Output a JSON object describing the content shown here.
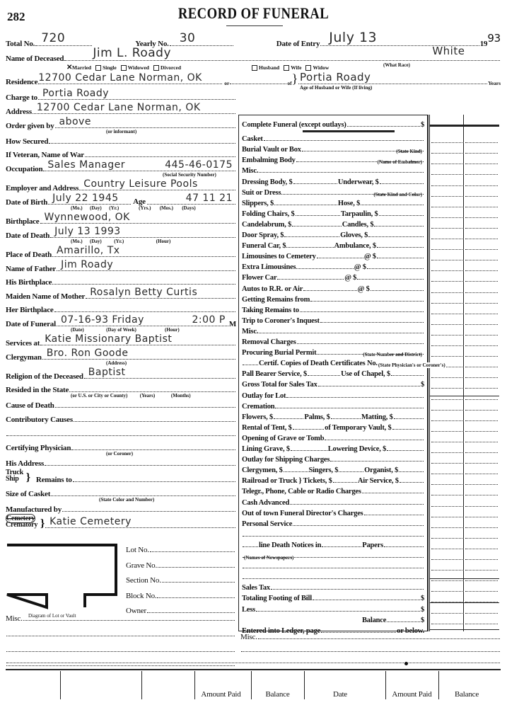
{
  "header": {
    "page_number": "282",
    "title": "RECORD OF FUNERAL"
  },
  "top": {
    "total_no_label": "Total No.",
    "total_no": "720",
    "yearly_no_label": "Yearly No.",
    "yearly_no": "30",
    "date_of_entry_label": "Date of Entry",
    "date_of_entry": "July 13",
    "year_prefix": "19",
    "year_suffix": "93"
  },
  "deceased": {
    "name_label": "Name of Deceased",
    "name": "Jim L. Roady",
    "race": "White",
    "race_note": "(What Race)",
    "marital": [
      {
        "label": "Married",
        "checked": true
      },
      {
        "label": "Single",
        "checked": false
      },
      {
        "label": "Widowed",
        "checked": false
      },
      {
        "label": "Divorced",
        "checked": false
      }
    ],
    "residence_label": "Residence",
    "residence": "12700 Cedar Lane Norman, OK",
    "spouse_options": [
      "Husband",
      "Wife",
      "Widow"
    ],
    "or_label": "or",
    "of_label": "of",
    "spouse_name": "Portia Roady",
    "age_spouse_label": "Age of Husband or Wife (If living)",
    "years_label": "Years"
  },
  "left_fields": [
    {
      "label": "Charge to",
      "value": "Portia Roady"
    },
    {
      "label": "Address",
      "value": "12700 Cedar Lane Norman, OK"
    },
    {
      "label": "Order given by",
      "value": "above",
      "note": "(or informant)"
    },
    {
      "label": "How Secured",
      "value": ""
    },
    {
      "label": "If Veteran, Name of War",
      "value": ""
    },
    {
      "label": "Occupation",
      "value": "Sales Manager",
      "value2": "445-46-0175",
      "note": "(Social Security Number)"
    },
    {
      "label": "Employer and Address",
      "value": "Country Leisure Pools"
    },
    {
      "label": "Date of Birth",
      "value": "July 22 1945",
      "mid": "Age",
      "value2": "47  11  21",
      "note": "(Mo.)      (Day)      (Yr.)                (Yrs.)       (Mos.)       (Days)"
    },
    {
      "label": "Birthplace",
      "value": "Wynnewood, OK"
    },
    {
      "label": "Date of Death",
      "value": "July   13      1993",
      "note": "(Mo.)      (Day)          (Yr.)                          (Hour)"
    },
    {
      "label": "Place of Death",
      "value": "Amarillo, Tx"
    },
    {
      "label": "Name of Father",
      "value": "Jim Roady"
    },
    {
      "label": "His Birthplace",
      "value": ""
    },
    {
      "label": "Maiden Name of Mother",
      "value": "Rosalyn Betty Curtis"
    },
    {
      "label": "Her Birthplace",
      "value": ""
    },
    {
      "label": "Date of Funeral",
      "value": "07-16-93   Friday",
      "value2": "2:00 P",
      "suffix": "M",
      "note": "(Date)                  (Day of Week)                       (Hour)"
    },
    {
      "label": "Services at",
      "value": "Katie Missionary Baptist"
    },
    {
      "label": "Clergyman",
      "value": "Bro. Ron Goode",
      "note": "(Address)"
    },
    {
      "label": "Religion of the Deceased",
      "value": "Baptist"
    },
    {
      "label": "Resided in the State",
      "value": "",
      "note": "(or U.S. or City or County)          (Years)             (Months)"
    },
    {
      "label": "Cause of Death",
      "value": ""
    },
    {
      "label": "Contributory Causes",
      "value": ""
    },
    {
      "label": "",
      "value": ""
    },
    {
      "label": "Certifying Physician",
      "value": "",
      "note": "(or Coroner)"
    },
    {
      "label": "His Address",
      "value": ""
    },
    {
      "label": "Remains to",
      "value": "",
      "prefix": "Truck / Ship"
    },
    {
      "label": "Size of Casket",
      "value": "",
      "note": "(State Color and Number)"
    },
    {
      "label": "Manufactured by",
      "value": ""
    },
    {
      "label": "Cemetery / Crematory",
      "value": "Katie Cemetery"
    }
  ],
  "lot": {
    "fields": [
      "Lot No.",
      "Grave No.",
      "Section No.",
      "Block No.",
      "Owner"
    ],
    "diagram_caption": "Diagram of Lot or Vault",
    "misc_label": "Misc."
  },
  "charges": {
    "rows": [
      {
        "parts": [
          "Complete Funeral (except outlays)",
          "$"
        ]
      },
      {
        "parts": [
          "Casket"
        ]
      },
      {
        "parts": [
          "Burial Vault or Box"
        ],
        "note": "(State Kind)"
      },
      {
        "parts": [
          "Embalming Body"
        ],
        "note": "(Name of Embalmer)"
      },
      {
        "parts": [
          "Misc."
        ]
      },
      {
        "parts": [
          "Dressing Body, $",
          "Underwear, $"
        ]
      },
      {
        "parts": [
          "Suit or Dress"
        ],
        "note": "(State Kind and Color)"
      },
      {
        "parts": [
          "Slippers, $",
          "Hose, $"
        ]
      },
      {
        "parts": [
          "Folding Chairs, $",
          "Tarpaulin, $"
        ]
      },
      {
        "parts": [
          "Candelabrum, $",
          "Candles, $"
        ]
      },
      {
        "parts": [
          "Door Spray, $",
          "Gloves, $"
        ]
      },
      {
        "parts": [
          "Funeral Car, $",
          "Ambulance, $"
        ]
      },
      {
        "parts": [
          "Limousines to Cemetery",
          "@ $"
        ]
      },
      {
        "parts": [
          "Extra Limousines",
          "@ $"
        ]
      },
      {
        "parts": [
          "Flower Car",
          "@ $"
        ]
      },
      {
        "parts": [
          "Autos to R.R. or Air",
          "@ $"
        ]
      },
      {
        "parts": [
          "Getting Remains from"
        ]
      },
      {
        "parts": [
          "Taking Remains to"
        ]
      },
      {
        "parts": [
          "Trip to Coroner's Inquest"
        ]
      },
      {
        "parts": [
          "Misc."
        ]
      },
      {
        "parts": [
          "Removal Charges"
        ]
      },
      {
        "parts": [
          "Procuring Burial Permit"
        ],
        "note": "(State Number and District)"
      },
      {
        "parts": [
          "",
          "Certif. Copies of Death Certificates No."
        ],
        "note": "(State Physician's or Coroner's)"
      },
      {
        "parts": [
          "Pall Bearer Service, $",
          "Use of Chapel, $"
        ]
      },
      {
        "parts": [
          "Gross Total for Sales Tax",
          "$"
        ]
      },
      {
        "parts": [
          "Outlay for Lot"
        ]
      },
      {
        "parts": [
          "Cremation"
        ]
      },
      {
        "parts": [
          "Flowers, $",
          "Palms, $",
          "Matting, $"
        ]
      },
      {
        "parts": [
          "Rental of Tent, $",
          "of Temporary Vault, $"
        ]
      },
      {
        "parts": [
          "Opening of Grave or Tomb"
        ]
      },
      {
        "parts": [
          "Lining Grave, $",
          "Lowering Device, $"
        ]
      },
      {
        "parts": [
          "Outlay for Shipping Charges"
        ]
      },
      {
        "parts": [
          "Clergymen, $",
          "Singers, $",
          "Organist, $"
        ]
      },
      {
        "parts": [
          "Railroad or Truck }  Tickets, $",
          "Air Service, $"
        ]
      },
      {
        "parts": [
          "Telegr., Phone, Cable or Radio Charges"
        ]
      },
      {
        "parts": [
          "Cash Advanced"
        ]
      },
      {
        "parts": [
          "Out of town Funeral Director's Charges"
        ]
      },
      {
        "parts": [
          "Personal Service"
        ]
      },
      {
        "parts": [
          ""
        ]
      },
      {
        "parts": [
          "",
          "line Death Notices in",
          "Papers"
        ]
      },
      {
        "parts": [
          ""
        ],
        "note": "(Names of Newspapers)"
      },
      {
        "parts": [
          ""
        ]
      },
      {
        "parts": [
          ""
        ]
      },
      {
        "parts": [
          "Sales Tax"
        ]
      },
      {
        "parts": [
          "Totaling Footing of Bill",
          "$"
        ]
      },
      {
        "parts": [
          "Less",
          "$"
        ]
      },
      {
        "parts": [
          "Balance",
          "$"
        ]
      },
      {
        "parts": [
          "Entered into Ledger, page",
          "or below."
        ]
      }
    ],
    "misc_label": "Misc."
  },
  "ledger": {
    "headers": [
      "Amount Paid",
      "Balance",
      "Date",
      "Amount Paid",
      "Balance"
    ]
  }
}
